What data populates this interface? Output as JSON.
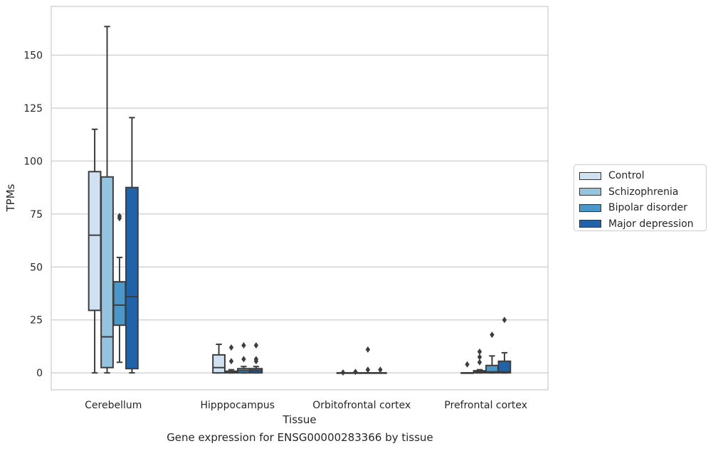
{
  "chart_data": {
    "type": "box",
    "xlabel": "Tissue",
    "ylabel": "TPMs",
    "ylim": [
      -8,
      173
    ],
    "yticks": [
      0,
      25,
      50,
      75,
      100,
      125,
      150
    ],
    "grid": "horizontal",
    "legend_position": "right",
    "categories": [
      "Cerebellum",
      "Hipppocampus",
      "Orbitofrontal cortex",
      "Prefrontal cortex"
    ],
    "series": [
      {
        "name": "Control",
        "color": "#d0e1f2",
        "boxes": [
          {
            "whislo": 0,
            "q1": 29.5,
            "med": 65,
            "q3": 95,
            "whishi": 115,
            "fliers": []
          },
          {
            "whislo": 0,
            "q1": 0,
            "med": 2.5,
            "q3": 8.5,
            "whishi": 13.5,
            "fliers": []
          },
          {
            "whislo": 0,
            "q1": 0,
            "med": 0,
            "q3": 0,
            "whishi": 0,
            "fliers": [
              0.2
            ]
          },
          {
            "whislo": 0,
            "q1": 0,
            "med": 0,
            "q3": 0,
            "whishi": 0,
            "fliers": [
              4
            ]
          }
        ]
      },
      {
        "name": "Schizophrenia",
        "color": "#94c4df",
        "boxes": [
          {
            "whislo": 0,
            "q1": 2.5,
            "med": 17,
            "q3": 92.5,
            "whishi": 163.5,
            "fliers": []
          },
          {
            "whislo": 0,
            "q1": 0,
            "med": 0.3,
            "q3": 0.8,
            "whishi": 1.5,
            "fliers": [
              5.5,
              12
            ]
          },
          {
            "whislo": 0,
            "q1": 0,
            "med": 0,
            "q3": 0,
            "whishi": 0,
            "fliers": [
              0.5
            ]
          },
          {
            "whislo": 0,
            "q1": 0,
            "med": 0.4,
            "q3": 1,
            "whishi": 1.5,
            "fliers": [
              5,
              7.5,
              10
            ]
          }
        ]
      },
      {
        "name": "Bipolar disorder",
        "color": "#4a98c9",
        "boxes": [
          {
            "whislo": 5,
            "q1": 22.5,
            "med": 32,
            "q3": 43,
            "whishi": 54.5,
            "fliers": [
              73,
              74
            ]
          },
          {
            "whislo": 0,
            "q1": 0,
            "med": 1,
            "q3": 2,
            "whishi": 3,
            "fliers": [
              6.5,
              13
            ]
          },
          {
            "whislo": 0,
            "q1": 0,
            "med": 0,
            "q3": 0,
            "whishi": 0,
            "fliers": [
              1.5,
              11
            ]
          },
          {
            "whislo": 0,
            "q1": 0,
            "med": 0.5,
            "q3": 3.5,
            "whishi": 8,
            "fliers": [
              18
            ]
          }
        ]
      },
      {
        "name": "Major depression",
        "color": "#2163aa",
        "boxes": [
          {
            "whislo": 0,
            "q1": 2,
            "med": 36,
            "q3": 87.5,
            "whishi": 120.5,
            "fliers": []
          },
          {
            "whislo": 0,
            "q1": 0,
            "med": 1,
            "q3": 2,
            "whishi": 3,
            "fliers": [
              5.5,
              6.5,
              13
            ]
          },
          {
            "whislo": 0,
            "q1": 0,
            "med": 0,
            "q3": 0,
            "whishi": 0,
            "fliers": [
              1.5
            ]
          },
          {
            "whislo": 0,
            "q1": 0,
            "med": 0.5,
            "q3": 5.5,
            "whishi": 9.5,
            "fliers": [
              25
            ]
          }
        ]
      }
    ]
  },
  "caption": "Gene expression for ENSG00000283366 by tissue"
}
